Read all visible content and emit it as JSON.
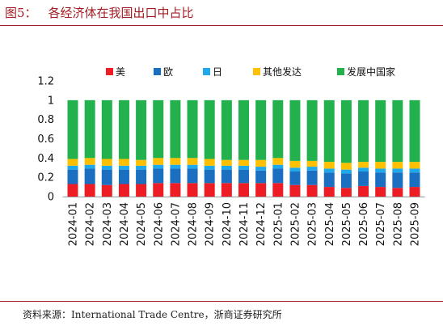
{
  "header": {
    "figure_label": "图5："
  },
  "source": "资料来源：International Trade Centre，浙商证券研究所",
  "chart_data": {
    "type": "bar",
    "stacked": true,
    "title": "各经济体在我国出口中占比",
    "xlabel": "",
    "ylabel": "",
    "categories": [
      "2024-01",
      "2024-02",
      "2024-03",
      "2024-04",
      "2024-05",
      "2024-06",
      "2024-07",
      "2024-08",
      "2024-09",
      "2024-10",
      "2024-11",
      "2024-12",
      "2025-01",
      "2025-02",
      "2025-03",
      "2025-04",
      "2025-05",
      "2025-06",
      "2025-07",
      "2025-08",
      "2025-09"
    ],
    "series": [
      {
        "name": "美",
        "color": "#ee1c25",
        "values": [
          0.13,
          0.13,
          0.12,
          0.13,
          0.13,
          0.14,
          0.14,
          0.14,
          0.14,
          0.14,
          0.14,
          0.14,
          0.14,
          0.12,
          0.12,
          0.1,
          0.09,
          0.11,
          0.1,
          0.09,
          0.1
        ]
      },
      {
        "name": "欧",
        "color": "#1a6fc0",
        "values": [
          0.15,
          0.16,
          0.16,
          0.15,
          0.15,
          0.15,
          0.15,
          0.15,
          0.14,
          0.14,
          0.14,
          0.13,
          0.15,
          0.14,
          0.15,
          0.15,
          0.15,
          0.15,
          0.15,
          0.16,
          0.15
        ]
      },
      {
        "name": "日",
        "color": "#1fa9ea",
        "values": [
          0.04,
          0.04,
          0.04,
          0.04,
          0.04,
          0.04,
          0.04,
          0.04,
          0.04,
          0.04,
          0.04,
          0.04,
          0.04,
          0.04,
          0.04,
          0.04,
          0.04,
          0.04,
          0.04,
          0.04,
          0.04
        ]
      },
      {
        "name": "其他发达",
        "color": "#ffc000",
        "values": [
          0.07,
          0.07,
          0.07,
          0.07,
          0.06,
          0.07,
          0.07,
          0.07,
          0.07,
          0.06,
          0.06,
          0.07,
          0.07,
          0.07,
          0.06,
          0.07,
          0.07,
          0.06,
          0.07,
          0.07,
          0.07
        ]
      },
      {
        "name": "发展中国家",
        "color": "#22b14c",
        "values": [
          0.61,
          0.6,
          0.61,
          0.61,
          0.62,
          0.6,
          0.6,
          0.6,
          0.61,
          0.62,
          0.62,
          0.62,
          0.6,
          0.63,
          0.63,
          0.64,
          0.65,
          0.64,
          0.64,
          0.64,
          0.64
        ]
      }
    ],
    "ylim": [
      0,
      1.2
    ],
    "yticks": [
      0,
      0.2,
      0.4,
      0.6,
      0.8,
      1,
      1.2
    ],
    "ytick_labels": [
      "0",
      "0.2",
      "0.4",
      "0.6",
      "0.8",
      "1",
      "1.2"
    ],
    "grid": false,
    "legend_position": "top"
  }
}
